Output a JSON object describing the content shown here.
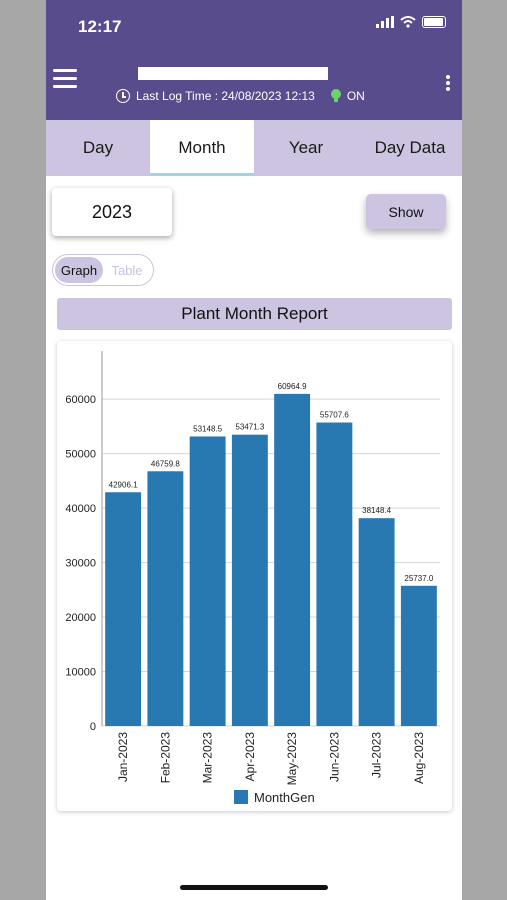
{
  "status_bar": {
    "time": "12:17"
  },
  "header": {
    "last_log_label": "Last Log Time : 24/08/2023 12:13",
    "status": "ON"
  },
  "tabs": [
    {
      "label": "Day",
      "active": false
    },
    {
      "label": "Month",
      "active": true
    },
    {
      "label": "Year",
      "active": false
    },
    {
      "label": "Day Data",
      "active": false
    }
  ],
  "year_select": {
    "value": "2023"
  },
  "show_button": {
    "label": "Show"
  },
  "view_toggle": {
    "graph": "Graph",
    "table": "Table",
    "selected": "Graph"
  },
  "report": {
    "title": "Plant Month Report"
  },
  "colors": {
    "header_bg": "#584c8c",
    "accent_light": "#ccc4e0",
    "bar": "#2879b2",
    "active_underline": "#9fd3ea"
  },
  "chart_data": {
    "type": "bar",
    "categories": [
      "Jan-2023",
      "Feb-2023",
      "Mar-2023",
      "Apr-2023",
      "May-2023",
      "Jun-2023",
      "Jul-2023",
      "Aug-2023"
    ],
    "series": [
      {
        "name": "MonthGen",
        "values": [
          42906.1,
          46759.8,
          53148.5,
          53471.3,
          60964.9,
          55707.6,
          38148.4,
          25737.0
        ]
      }
    ],
    "data_labels": [
      "42906.1",
      "46759.8",
      "53148.5",
      "53471.3",
      "60964.9",
      "55707.6",
      "38148.4",
      "25737.0"
    ],
    "yticks": [
      "0",
      "10000",
      "20000",
      "30000",
      "40000",
      "50000",
      "60000"
    ],
    "ylim": [
      0,
      67000
    ],
    "grid": true,
    "legend": "bottom-center",
    "title": "",
    "xlabel": "",
    "ylabel": ""
  }
}
